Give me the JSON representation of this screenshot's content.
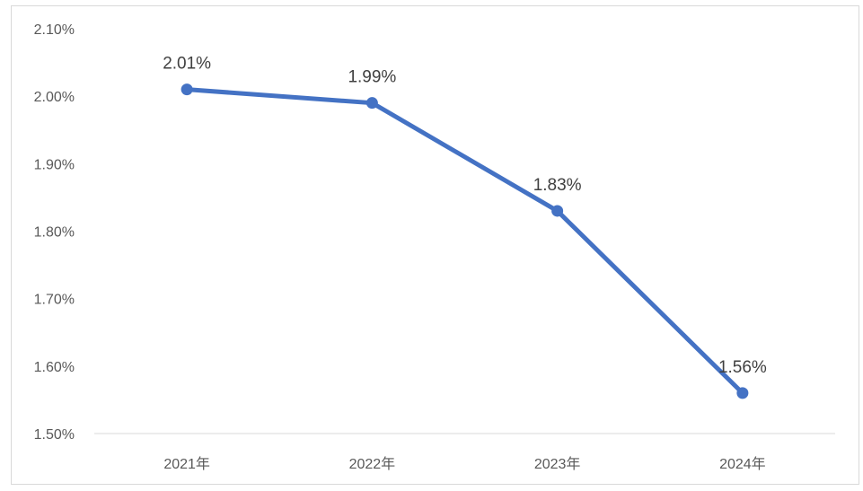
{
  "chart_data": {
    "type": "line",
    "title": "",
    "xlabel": "",
    "ylabel": "",
    "categories": [
      "2021年",
      "2022年",
      "2023年",
      "2024年"
    ],
    "series": [
      {
        "values": [
          2.01,
          1.99,
          1.83,
          1.56
        ],
        "color": "#4472c4"
      }
    ],
    "data_labels": [
      "2.01%",
      "1.99%",
      "1.83%",
      "1.56%"
    ],
    "y_ticks": [
      1.5,
      1.6,
      1.7,
      1.8,
      1.9,
      2.0,
      2.1
    ],
    "y_tick_labels": [
      "1.50%",
      "1.60%",
      "1.70%",
      "1.80%",
      "1.90%",
      "2.00%",
      "2.10%"
    ],
    "ylim": [
      1.5,
      2.1
    ],
    "grid": false,
    "legend": "none",
    "axis_color": "#d9d9d9"
  }
}
